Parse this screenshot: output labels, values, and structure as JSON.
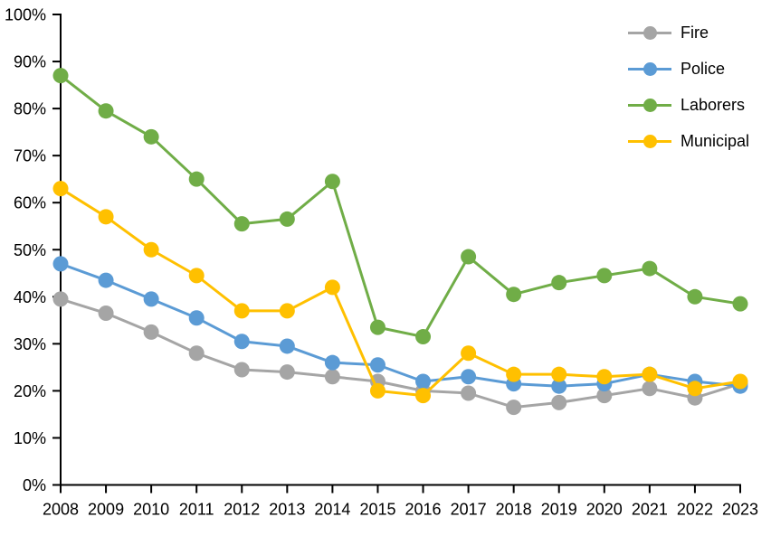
{
  "chart_data": {
    "type": "line",
    "title": "",
    "xlabel": "",
    "ylabel": "",
    "categories": [
      "2008",
      "2009",
      "2010",
      "2011",
      "2012",
      "2013",
      "2014",
      "2015",
      "2016",
      "2017",
      "2018",
      "2019",
      "2020",
      "2021",
      "2022",
      "2023"
    ],
    "series": [
      {
        "name": "Fire",
        "color": "#A5A5A5",
        "values": [
          39.5,
          36.5,
          32.5,
          28,
          24.5,
          24,
          23,
          22,
          20,
          19.5,
          16.5,
          17.5,
          19,
          20.5,
          18.5,
          21.5
        ]
      },
      {
        "name": "Police",
        "color": "#5B9BD5",
        "values": [
          47,
          43.5,
          39.5,
          35.5,
          30.5,
          29.5,
          26,
          25.5,
          22,
          23,
          21.5,
          21,
          21.5,
          23.5,
          22,
          21
        ]
      },
      {
        "name": "Laborers",
        "color": "#70AD47",
        "values": [
          87,
          79.5,
          74,
          65,
          55.5,
          56.5,
          64.5,
          33.5,
          31.5,
          48.5,
          40.5,
          43,
          44.5,
          46,
          40,
          38.5
        ]
      },
      {
        "name": "Municipal",
        "color": "#FFC000",
        "values": [
          63,
          57,
          50,
          44.5,
          37,
          37,
          42,
          20,
          19,
          28,
          23.5,
          23.5,
          23,
          23.5,
          20.5,
          22
        ]
      }
    ],
    "ylim": [
      0,
      100
    ],
    "ytick_step": 10,
    "ytick_format": "percent",
    "ytick_labels": [
      "0%",
      "10%",
      "20%",
      "30%",
      "40%",
      "50%",
      "60%",
      "70%",
      "80%",
      "90%",
      "100%"
    ],
    "grid": false,
    "legend_position": "top-right",
    "axis_color": "#000000",
    "background_color": "#FFFFFF"
  }
}
